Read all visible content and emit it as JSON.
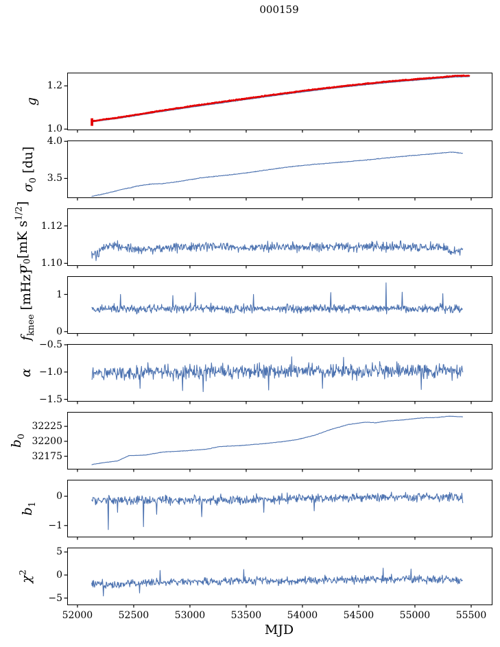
{
  "title": "000159",
  "xlabel": "MJD",
  "colors": {
    "line": "#4c72b0",
    "overlay": "#e60000",
    "axis": "#000000",
    "background": "#ffffff"
  },
  "x_axis": {
    "min": 51909,
    "max": 55677,
    "ticks": [
      {
        "v": 52000,
        "label": "52000"
      },
      {
        "v": 52500,
        "label": "52500"
      },
      {
        "v": 53000,
        "label": "53000"
      },
      {
        "v": 53500,
        "label": "53500"
      },
      {
        "v": 54000,
        "label": "54000"
      },
      {
        "v": 54500,
        "label": "54500"
      },
      {
        "v": 55000,
        "label": "55000"
      },
      {
        "v": 55500,
        "label": "55500"
      }
    ]
  },
  "chart_data": [
    {
      "type": "line",
      "name": "g",
      "ylabel_segments": [
        {
          "t": "g",
          "italic": true
        }
      ],
      "ylabel_x": 46,
      "ylim": [
        0.998,
        1.258
      ],
      "yticks": [
        {
          "v": 1.0,
          "label": "1.0"
        },
        {
          "v": 1.2,
          "label": "1.2"
        }
      ],
      "grid": false,
      "series": [
        {
          "name": "g-model",
          "color": "#4c72b0",
          "width": 1.1,
          "noise": 0.0009,
          "seed": 11,
          "x_range": [
            52120,
            55480
          ],
          "keypoints": [
            [
              52120,
              1.033
            ],
            [
              52200,
              1.039
            ],
            [
              52350,
              1.049
            ],
            [
              52500,
              1.061
            ],
            [
              52700,
              1.078
            ],
            [
              53000,
              1.101
            ],
            [
              53250,
              1.119
            ],
            [
              53500,
              1.137
            ],
            [
              53750,
              1.155
            ],
            [
              54000,
              1.172
            ],
            [
              54250,
              1.188
            ],
            [
              54500,
              1.202
            ],
            [
              54750,
              1.215
            ],
            [
              55000,
              1.226
            ],
            [
              55200,
              1.234
            ],
            [
              55350,
              1.241
            ],
            [
              55480,
              1.243
            ]
          ]
        },
        {
          "name": "g-data",
          "color": "#e60000",
          "width": 2.6,
          "noise": 0.0016,
          "seed": 12,
          "x_range": [
            52120,
            55480
          ],
          "keypoints": [
            [
              52120,
              1.036
            ],
            [
              52200,
              1.043
            ],
            [
              52350,
              1.053
            ],
            [
              52500,
              1.065
            ],
            [
              52700,
              1.082
            ],
            [
              53000,
              1.106
            ],
            [
              53250,
              1.124
            ],
            [
              53500,
              1.142
            ],
            [
              53750,
              1.16
            ],
            [
              54000,
              1.177
            ],
            [
              54250,
              1.193
            ],
            [
              54500,
              1.207
            ],
            [
              54750,
              1.22
            ],
            [
              55000,
              1.231
            ],
            [
              55200,
              1.239
            ],
            [
              55350,
              1.246
            ],
            [
              55480,
              1.248
            ]
          ],
          "extra_segments": [
            [
              52123,
              1.015,
              1.05
            ]
          ]
        }
      ]
    },
    {
      "type": "line",
      "name": "sigma0_du",
      "ylabel_segments": [
        {
          "t": "σ",
          "italic": true
        },
        {
          "t": "0",
          "sub": true
        },
        {
          "t": " [du]"
        }
      ],
      "ylabel_x": 43,
      "ylim": [
        3.245,
        4.002
      ],
      "yticks": [
        {
          "v": 3.5,
          "label": "3.5"
        },
        {
          "v": 4.0,
          "label": "4.0"
        }
      ],
      "grid": false,
      "series": [
        {
          "name": "sigma0-du",
          "color": "#4c72b0",
          "width": 1.1,
          "noise": 0.004,
          "seed": 21,
          "x_range": [
            52120,
            55420
          ],
          "keypoints": [
            [
              52120,
              3.258
            ],
            [
              52250,
              3.3
            ],
            [
              52400,
              3.355
            ],
            [
              52550,
              3.405
            ],
            [
              52650,
              3.425
            ],
            [
              52750,
              3.43
            ],
            [
              52900,
              3.46
            ],
            [
              53100,
              3.51
            ],
            [
              53300,
              3.54
            ],
            [
              53500,
              3.575
            ],
            [
              53700,
              3.62
            ],
            [
              53900,
              3.66
            ],
            [
              54100,
              3.69
            ],
            [
              54300,
              3.715
            ],
            [
              54500,
              3.74
            ],
            [
              54700,
              3.77
            ],
            [
              54900,
              3.8
            ],
            [
              55100,
              3.825
            ],
            [
              55250,
              3.845
            ],
            [
              55330,
              3.855
            ],
            [
              55420,
              3.838
            ]
          ]
        }
      ]
    },
    {
      "type": "line",
      "name": "sigma0_mK",
      "ylabel_segments": [
        {
          "t": "σ",
          "italic": true
        },
        {
          "t": "0",
          "sub": true
        },
        {
          "t": "[mK s"
        },
        {
          "t": "1/2",
          "sup": true
        },
        {
          "t": "]"
        }
      ],
      "ylabel_x": 34,
      "ylim": [
        1.099,
        1.129
      ],
      "yticks": [
        {
          "v": 1.1,
          "label": "1.10"
        },
        {
          "v": 1.12,
          "label": "1.12"
        }
      ],
      "grid": false,
      "series": [
        {
          "name": "sigma0-mK",
          "color": "#4c72b0",
          "width": 1.1,
          "noise": 0.0022,
          "seed": 31,
          "x_range": [
            52120,
            55420
          ],
          "keypoints": [
            [
              52120,
              1.1045
            ],
            [
              52170,
              1.1042
            ],
            [
              52250,
              1.1095
            ],
            [
              52330,
              1.11
            ],
            [
              52420,
              1.1088
            ],
            [
              52520,
              1.1075
            ],
            [
              52650,
              1.1078
            ],
            [
              52800,
              1.1085
            ],
            [
              53000,
              1.1085
            ],
            [
              53200,
              1.109
            ],
            [
              53450,
              1.1082
            ],
            [
              53700,
              1.1088
            ],
            [
              54000,
              1.1085
            ],
            [
              54300,
              1.1088
            ],
            [
              54600,
              1.1085
            ],
            [
              54800,
              1.1092
            ],
            [
              55000,
              1.1085
            ],
            [
              55150,
              1.1095
            ],
            [
              55280,
              1.1078
            ],
            [
              55340,
              1.1052
            ],
            [
              55420,
              1.1068
            ]
          ]
        }
      ]
    },
    {
      "type": "line",
      "name": "f_knee",
      "ylabel_segments": [
        {
          "t": "f",
          "italic": true
        },
        {
          "t": "knee",
          "sub": true
        },
        {
          "t": " [mHz]"
        }
      ],
      "ylabel_x": 40,
      "ylim": [
        -0.04,
        1.47
      ],
      "yticks": [
        {
          "v": 0,
          "label": "0"
        },
        {
          "v": 1,
          "label": "1"
        }
      ],
      "grid": false,
      "series": [
        {
          "name": "f-knee",
          "color": "#4c72b0",
          "width": 1.1,
          "noise": 0.1,
          "seed": 41,
          "x_range": [
            52120,
            55420
          ],
          "keypoints": [
            [
              52120,
              0.6
            ],
            [
              52300,
              0.62
            ],
            [
              52600,
              0.6
            ],
            [
              53000,
              0.63
            ],
            [
              53400,
              0.6
            ],
            [
              53800,
              0.62
            ],
            [
              54200,
              0.62
            ],
            [
              54600,
              0.63
            ],
            [
              55000,
              0.62
            ],
            [
              55420,
              0.62
            ]
          ],
          "spikes": [
            [
              52375,
              1.0
            ],
            [
              52840,
              0.97
            ],
            [
              53040,
              1.05
            ],
            [
              53560,
              1.0
            ],
            [
              54245,
              1.05
            ],
            [
              54738,
              1.31
            ],
            [
              54880,
              1.06
            ],
            [
              55240,
              1.02
            ]
          ]
        }
      ]
    },
    {
      "type": "line",
      "name": "alpha",
      "ylabel_segments": [
        {
          "t": "α",
          "italic": true
        }
      ],
      "ylabel_x": 38,
      "ylim": [
        -1.53,
        -0.5
      ],
      "yticks": [
        {
          "v": -0.5,
          "label": "−0.5"
        },
        {
          "v": -1.0,
          "label": "−1.0"
        },
        {
          "v": -1.5,
          "label": "−1.5"
        }
      ],
      "grid": false,
      "series": [
        {
          "name": "alpha",
          "color": "#4c72b0",
          "width": 1.1,
          "noise": 0.115,
          "seed": 51,
          "x_range": [
            52120,
            55420
          ],
          "keypoints": [
            [
              52120,
              -1.02
            ],
            [
              52500,
              -1.0
            ],
            [
              53000,
              -1.0
            ],
            [
              53500,
              -0.99
            ],
            [
              54000,
              -0.98
            ],
            [
              54500,
              -0.99
            ],
            [
              55000,
              -0.98
            ],
            [
              55420,
              -0.99
            ]
          ],
          "spikes": [
            [
              52550,
              -1.3
            ],
            [
              52930,
              -1.34
            ],
            [
              53110,
              -1.36
            ],
            [
              53695,
              -1.33
            ],
            [
              53900,
              -0.72
            ],
            [
              54170,
              -1.3
            ],
            [
              54360,
              -0.73
            ],
            [
              55050,
              -1.32
            ]
          ]
        }
      ]
    },
    {
      "type": "line",
      "name": "b0",
      "ylabel_segments": [
        {
          "t": "b",
          "italic": true
        },
        {
          "t": "0",
          "sub": true
        }
      ],
      "ylabel_x": 26,
      "ylim": [
        32154,
        32248
      ],
      "yticks": [
        {
          "v": 32175,
          "label": "32175"
        },
        {
          "v": 32200,
          "label": "32200"
        },
        {
          "v": 32225,
          "label": "32225"
        }
      ],
      "grid": false,
      "series": [
        {
          "name": "b0",
          "color": "#4c72b0",
          "width": 1.1,
          "noise": 0.35,
          "seed": 61,
          "x_range": [
            52120,
            55420
          ],
          "keypoints": [
            [
              52120,
              32161
            ],
            [
              52250,
              32165
            ],
            [
              52350,
              32167
            ],
            [
              52450,
              32176
            ],
            [
              52600,
              32177
            ],
            [
              52750,
              32182
            ],
            [
              52950,
              32184
            ],
            [
              53150,
              32187
            ],
            [
              53250,
              32191
            ],
            [
              53450,
              32193
            ],
            [
              53650,
              32196
            ],
            [
              53800,
              32199
            ],
            [
              53950,
              32203
            ],
            [
              54100,
              32210
            ],
            [
              54250,
              32220
            ],
            [
              54400,
              32228
            ],
            [
              54550,
              32232
            ],
            [
              54650,
              32231
            ],
            [
              54750,
              32234
            ],
            [
              54900,
              32236
            ],
            [
              55050,
              32239
            ],
            [
              55200,
              32240
            ],
            [
              55300,
              32242
            ],
            [
              55420,
              32241
            ]
          ]
        }
      ]
    },
    {
      "type": "line",
      "name": "b1",
      "ylabel_segments": [
        {
          "t": "b",
          "italic": true
        },
        {
          "t": "1",
          "sub": true
        }
      ],
      "ylabel_x": 42,
      "ylim": [
        -1.38,
        0.54
      ],
      "yticks": [
        {
          "v": 0,
          "label": "0"
        },
        {
          "v": -1,
          "label": "−1"
        }
      ],
      "grid": false,
      "series": [
        {
          "name": "b1",
          "color": "#4c72b0",
          "width": 1.1,
          "noise": 0.13,
          "seed": 71,
          "x_range": [
            52120,
            55420
          ],
          "keypoints": [
            [
              52120,
              -0.12
            ],
            [
              52400,
              -0.16
            ],
            [
              52800,
              -0.13
            ],
            [
              53200,
              -0.12
            ],
            [
              53600,
              -0.1
            ],
            [
              54000,
              -0.07
            ],
            [
              54400,
              -0.05
            ],
            [
              54800,
              -0.03
            ],
            [
              55200,
              -0.02
            ],
            [
              55420,
              -0.05
            ]
          ],
          "spikes": [
            [
              52268,
              -1.14
            ],
            [
              52350,
              -0.55
            ],
            [
              52580,
              -1.04
            ],
            [
              52700,
              -0.62
            ],
            [
              53100,
              -0.7
            ],
            [
              53650,
              -0.55
            ],
            [
              54100,
              -0.5
            ]
          ]
        }
      ]
    },
    {
      "type": "line",
      "name": "chi2",
      "ylabel_segments": [
        {
          "t": "χ",
          "italic": true
        },
        {
          "t": "2",
          "sup": true
        }
      ],
      "ylabel_x": 38,
      "ylim": [
        -6.4,
        5.8
      ],
      "yticks": [
        {
          "v": 5,
          "label": "5"
        },
        {
          "v": 0,
          "label": "0"
        },
        {
          "v": -5,
          "label": "−5"
        }
      ],
      "grid": false,
      "series": [
        {
          "name": "chi2",
          "color": "#4c72b0",
          "width": 1.1,
          "noise": 0.72,
          "seed": 81,
          "x_range": [
            52120,
            55420
          ],
          "keypoints": [
            [
              52120,
              -1.7
            ],
            [
              52230,
              -2.0
            ],
            [
              52350,
              -2.1
            ],
            [
              52600,
              -1.6
            ],
            [
              53000,
              -1.5
            ],
            [
              53400,
              -1.2
            ],
            [
              53800,
              -1.4
            ],
            [
              54200,
              -1.1
            ],
            [
              54600,
              -0.9
            ],
            [
              55000,
              -1.0
            ],
            [
              55420,
              -1.1
            ]
          ],
          "spikes": [
            [
              52225,
              -4.55
            ],
            [
              52545,
              -3.9
            ],
            [
              52730,
              1.0
            ],
            [
              53470,
              1.2
            ],
            [
              54710,
              1.5
            ],
            [
              54960,
              1.3
            ]
          ]
        }
      ]
    }
  ]
}
